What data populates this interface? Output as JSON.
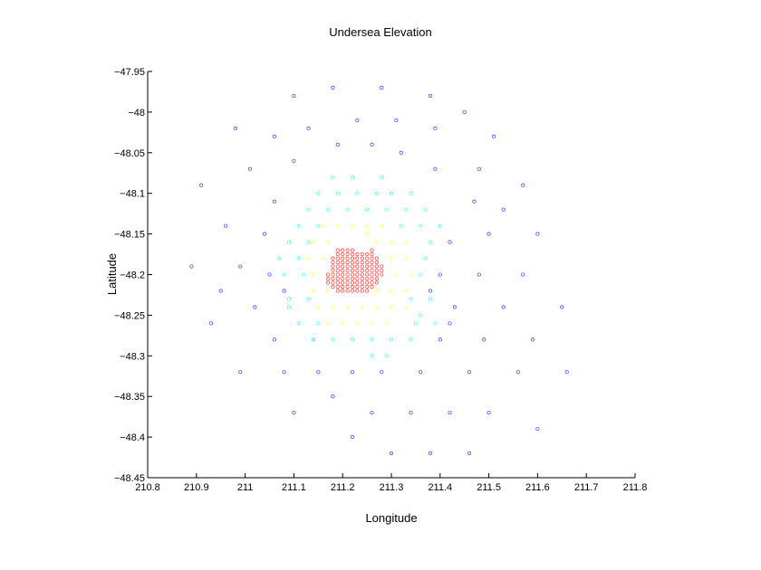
{
  "chart_data": {
    "type": "scatter",
    "title": "Undersea Elevation",
    "xlabel": "Longitude",
    "ylabel": "Latitude",
    "xlim": [
      210.8,
      211.8
    ],
    "ylim": [
      -48.45,
      -47.95
    ],
    "xticks": [
      "210.8",
      "210.9",
      "211",
      "211.1",
      "211.2",
      "211.3",
      "211.4",
      "211.5",
      "211.6",
      "211.7",
      "211.8"
    ],
    "yticks": [
      "-47.95",
      "-48",
      "-48.05",
      "-48.1",
      "-48.15",
      "-48.2",
      "-48.25",
      "-48.3",
      "-48.35",
      "-48.4",
      "-48.45"
    ],
    "grid": false,
    "marker": "circle-open",
    "colormap": [
      "#ff4040",
      "#ffff60",
      "#40ffff",
      "#4040ff"
    ],
    "series": [
      {
        "color": "#4040ff",
        "points": [
          [
            211.1,
            -47.98
          ],
          [
            211.18,
            -47.97
          ],
          [
            211.28,
            -47.97
          ],
          [
            211.38,
            -47.98
          ],
          [
            211.23,
            -48.01
          ],
          [
            211.31,
            -48.01
          ],
          [
            211.45,
            -48.0
          ],
          [
            210.98,
            -48.02
          ],
          [
            211.06,
            -48.03
          ],
          [
            211.13,
            -48.02
          ],
          [
            211.39,
            -48.02
          ],
          [
            211.51,
            -48.03
          ],
          [
            211.19,
            -48.04
          ],
          [
            211.26,
            -48.04
          ],
          [
            211.32,
            -48.05
          ],
          [
            211.1,
            -48.06
          ],
          [
            211.01,
            -48.07
          ],
          [
            211.39,
            -48.07
          ],
          [
            211.48,
            -48.07
          ],
          [
            210.91,
            -48.09
          ],
          [
            211.57,
            -48.09
          ],
          [
            211.06,
            -48.11
          ],
          [
            211.47,
            -48.11
          ],
          [
            211.53,
            -48.12
          ],
          [
            210.96,
            -48.14
          ],
          [
            211.04,
            -48.15
          ],
          [
            211.5,
            -48.15
          ],
          [
            211.6,
            -48.15
          ],
          [
            211.42,
            -48.16
          ],
          [
            210.89,
            -48.19
          ],
          [
            210.99,
            -48.19
          ],
          [
            211.05,
            -48.2
          ],
          [
            211.4,
            -48.2
          ],
          [
            211.48,
            -48.2
          ],
          [
            211.57,
            -48.2
          ],
          [
            210.95,
            -48.22
          ],
          [
            211.08,
            -48.22
          ],
          [
            211.38,
            -48.22
          ],
          [
            211.02,
            -48.24
          ],
          [
            211.43,
            -48.24
          ],
          [
            211.53,
            -48.24
          ],
          [
            211.65,
            -48.24
          ],
          [
            210.93,
            -48.26
          ],
          [
            211.42,
            -48.26
          ],
          [
            211.06,
            -48.28
          ],
          [
            211.14,
            -48.28
          ],
          [
            211.4,
            -48.28
          ],
          [
            211.49,
            -48.28
          ],
          [
            211.59,
            -48.28
          ],
          [
            210.99,
            -48.32
          ],
          [
            211.08,
            -48.32
          ],
          [
            211.15,
            -48.32
          ],
          [
            211.22,
            -48.32
          ],
          [
            211.28,
            -48.32
          ],
          [
            211.36,
            -48.32
          ],
          [
            211.46,
            -48.32
          ],
          [
            211.56,
            -48.32
          ],
          [
            211.66,
            -48.32
          ],
          [
            211.18,
            -48.35
          ],
          [
            211.1,
            -48.37
          ],
          [
            211.26,
            -48.37
          ],
          [
            211.34,
            -48.37
          ],
          [
            211.42,
            -48.37
          ],
          [
            211.5,
            -48.37
          ],
          [
            211.6,
            -48.39
          ],
          [
            211.22,
            -48.4
          ],
          [
            211.3,
            -48.42
          ],
          [
            211.38,
            -48.42
          ],
          [
            211.46,
            -48.42
          ]
        ]
      },
      {
        "color": "#40ffff",
        "points": [
          [
            211.18,
            -48.08
          ],
          [
            211.22,
            -48.08
          ],
          [
            211.28,
            -48.08
          ],
          [
            211.15,
            -48.1
          ],
          [
            211.19,
            -48.1
          ],
          [
            211.23,
            -48.1
          ],
          [
            211.27,
            -48.1
          ],
          [
            211.3,
            -48.1
          ],
          [
            211.34,
            -48.1
          ],
          [
            211.13,
            -48.12
          ],
          [
            211.17,
            -48.12
          ],
          [
            211.21,
            -48.12
          ],
          [
            211.25,
            -48.12
          ],
          [
            211.29,
            -48.12
          ],
          [
            211.33,
            -48.12
          ],
          [
            211.37,
            -48.12
          ],
          [
            211.11,
            -48.14
          ],
          [
            211.15,
            -48.14
          ],
          [
            211.32,
            -48.14
          ],
          [
            211.36,
            -48.14
          ],
          [
            211.4,
            -48.14
          ],
          [
            211.09,
            -48.16
          ],
          [
            211.13,
            -48.16
          ],
          [
            211.38,
            -48.16
          ],
          [
            211.07,
            -48.18
          ],
          [
            211.11,
            -48.18
          ],
          [
            211.37,
            -48.18
          ],
          [
            211.08,
            -48.2
          ],
          [
            211.12,
            -48.2
          ],
          [
            211.36,
            -48.2
          ],
          [
            211.09,
            -48.23
          ],
          [
            211.13,
            -48.23
          ],
          [
            211.34,
            -48.23
          ],
          [
            211.38,
            -48.23
          ],
          [
            211.09,
            -48.24
          ],
          [
            211.36,
            -48.25
          ],
          [
            211.11,
            -48.26
          ],
          [
            211.15,
            -48.26
          ],
          [
            211.35,
            -48.26
          ],
          [
            211.39,
            -48.26
          ],
          [
            211.14,
            -48.28
          ],
          [
            211.18,
            -48.28
          ],
          [
            211.22,
            -48.28
          ],
          [
            211.26,
            -48.28
          ],
          [
            211.3,
            -48.28
          ],
          [
            211.34,
            -48.28
          ],
          [
            211.26,
            -48.3
          ],
          [
            211.29,
            -48.3
          ]
        ]
      },
      {
        "color": "#ffff60",
        "points": [
          [
            211.16,
            -48.14
          ],
          [
            211.19,
            -48.14
          ],
          [
            211.22,
            -48.14
          ],
          [
            211.25,
            -48.14
          ],
          [
            211.28,
            -48.14
          ],
          [
            211.14,
            -48.16
          ],
          [
            211.17,
            -48.16
          ],
          [
            211.27,
            -48.16
          ],
          [
            211.3,
            -48.16
          ],
          [
            211.33,
            -48.16
          ],
          [
            211.13,
            -48.18
          ],
          [
            211.16,
            -48.18
          ],
          [
            211.3,
            -48.18
          ],
          [
            211.33,
            -48.18
          ],
          [
            211.14,
            -48.2
          ],
          [
            211.17,
            -48.2
          ],
          [
            211.31,
            -48.2
          ],
          [
            211.34,
            -48.2
          ],
          [
            211.14,
            -48.22
          ],
          [
            211.17,
            -48.22
          ],
          [
            211.2,
            -48.22
          ],
          [
            211.27,
            -48.22
          ],
          [
            211.3,
            -48.22
          ],
          [
            211.33,
            -48.22
          ],
          [
            211.15,
            -48.24
          ],
          [
            211.18,
            -48.24
          ],
          [
            211.21,
            -48.24
          ],
          [
            211.24,
            -48.24
          ],
          [
            211.27,
            -48.24
          ],
          [
            211.3,
            -48.24
          ],
          [
            211.33,
            -48.24
          ],
          [
            211.17,
            -48.26
          ],
          [
            211.2,
            -48.26
          ],
          [
            211.23,
            -48.26
          ],
          [
            211.26,
            -48.26
          ],
          [
            211.29,
            -48.26
          ],
          [
            211.21,
            -48.18
          ],
          [
            211.25,
            -48.15
          ]
        ]
      },
      {
        "color": "#ff4040",
        "points": [
          [
            211.19,
            -48.17
          ],
          [
            211.2,
            -48.17
          ],
          [
            211.21,
            -48.17
          ],
          [
            211.22,
            -48.17
          ],
          [
            211.26,
            -48.17
          ],
          [
            211.19,
            -48.175
          ],
          [
            211.2,
            -48.175
          ],
          [
            211.21,
            -48.175
          ],
          [
            211.22,
            -48.175
          ],
          [
            211.23,
            -48.175
          ],
          [
            211.24,
            -48.175
          ],
          [
            211.25,
            -48.175
          ],
          [
            211.26,
            -48.175
          ],
          [
            211.18,
            -48.18
          ],
          [
            211.19,
            -48.18
          ],
          [
            211.2,
            -48.18
          ],
          [
            211.21,
            -48.18
          ],
          [
            211.22,
            -48.18
          ],
          [
            211.23,
            -48.18
          ],
          [
            211.24,
            -48.18
          ],
          [
            211.25,
            -48.18
          ],
          [
            211.26,
            -48.18
          ],
          [
            211.27,
            -48.18
          ],
          [
            211.18,
            -48.185
          ],
          [
            211.19,
            -48.185
          ],
          [
            211.2,
            -48.185
          ],
          [
            211.21,
            -48.185
          ],
          [
            211.22,
            -48.185
          ],
          [
            211.23,
            -48.185
          ],
          [
            211.24,
            -48.185
          ],
          [
            211.25,
            -48.185
          ],
          [
            211.26,
            -48.185
          ],
          [
            211.27,
            -48.185
          ],
          [
            211.18,
            -48.19
          ],
          [
            211.19,
            -48.19
          ],
          [
            211.2,
            -48.19
          ],
          [
            211.21,
            -48.19
          ],
          [
            211.22,
            -48.19
          ],
          [
            211.23,
            -48.19
          ],
          [
            211.24,
            -48.19
          ],
          [
            211.25,
            -48.19
          ],
          [
            211.26,
            -48.19
          ],
          [
            211.27,
            -48.19
          ],
          [
            211.28,
            -48.19
          ],
          [
            211.18,
            -48.195
          ],
          [
            211.19,
            -48.195
          ],
          [
            211.2,
            -48.195
          ],
          [
            211.21,
            -48.195
          ],
          [
            211.22,
            -48.195
          ],
          [
            211.23,
            -48.195
          ],
          [
            211.24,
            -48.195
          ],
          [
            211.25,
            -48.195
          ],
          [
            211.26,
            -48.195
          ],
          [
            211.27,
            -48.195
          ],
          [
            211.28,
            -48.195
          ],
          [
            211.17,
            -48.2
          ],
          [
            211.18,
            -48.2
          ],
          [
            211.19,
            -48.2
          ],
          [
            211.2,
            -48.2
          ],
          [
            211.21,
            -48.2
          ],
          [
            211.22,
            -48.2
          ],
          [
            211.23,
            -48.2
          ],
          [
            211.24,
            -48.2
          ],
          [
            211.25,
            -48.2
          ],
          [
            211.26,
            -48.2
          ],
          [
            211.27,
            -48.2
          ],
          [
            211.28,
            -48.2
          ],
          [
            211.17,
            -48.205
          ],
          [
            211.18,
            -48.205
          ],
          [
            211.19,
            -48.205
          ],
          [
            211.2,
            -48.205
          ],
          [
            211.21,
            -48.205
          ],
          [
            211.22,
            -48.205
          ],
          [
            211.23,
            -48.205
          ],
          [
            211.24,
            -48.205
          ],
          [
            211.25,
            -48.205
          ],
          [
            211.26,
            -48.205
          ],
          [
            211.27,
            -48.205
          ],
          [
            211.17,
            -48.21
          ],
          [
            211.18,
            -48.21
          ],
          [
            211.19,
            -48.21
          ],
          [
            211.2,
            -48.21
          ],
          [
            211.21,
            -48.21
          ],
          [
            211.22,
            -48.21
          ],
          [
            211.23,
            -48.21
          ],
          [
            211.24,
            -48.21
          ],
          [
            211.25,
            -48.21
          ],
          [
            211.26,
            -48.21
          ],
          [
            211.27,
            -48.21
          ],
          [
            211.18,
            -48.215
          ],
          [
            211.19,
            -48.215
          ],
          [
            211.2,
            -48.215
          ],
          [
            211.21,
            -48.215
          ],
          [
            211.22,
            -48.215
          ],
          [
            211.23,
            -48.215
          ],
          [
            211.24,
            -48.215
          ],
          [
            211.25,
            -48.215
          ],
          [
            211.26,
            -48.215
          ],
          [
            211.19,
            -48.22
          ],
          [
            211.2,
            -48.22
          ],
          [
            211.21,
            -48.22
          ],
          [
            211.22,
            -48.22
          ],
          [
            211.23,
            -48.22
          ],
          [
            211.24,
            -48.22
          ],
          [
            211.25,
            -48.22
          ]
        ]
      }
    ]
  }
}
